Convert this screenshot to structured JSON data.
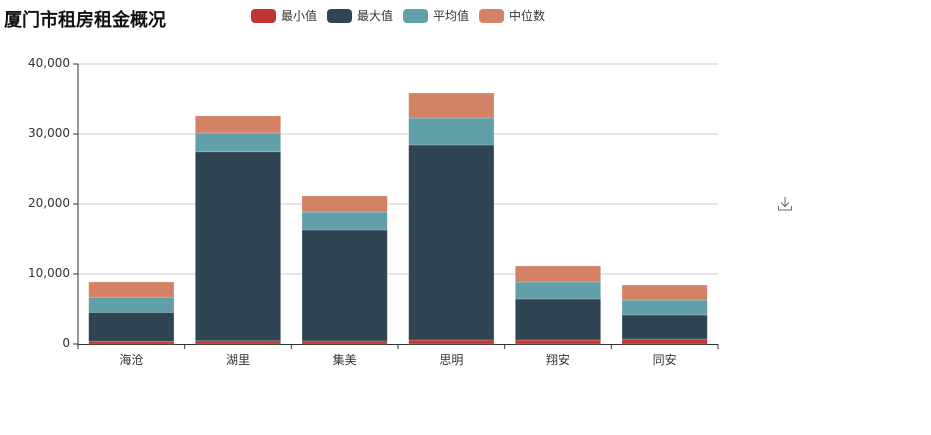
{
  "title": "厦门市租房租金概况",
  "legend": [
    {
      "label": "最小值",
      "color": "#c23531"
    },
    {
      "label": "最大值",
      "color": "#2f4554"
    },
    {
      "label": "平均值",
      "color": "#61a0a8"
    },
    {
      "label": "中位数",
      "color": "#d48265"
    }
  ],
  "toolbox": {
    "download_icon": "download-icon"
  },
  "chart_data": {
    "type": "bar",
    "stacked": true,
    "title": "厦门市租房租金概况",
    "xlabel": "",
    "ylabel": "",
    "ylim": [
      0,
      40000
    ],
    "yticks": [
      "0",
      "10,000",
      "20,000",
      "30,000",
      "40,000"
    ],
    "grid": true,
    "legend_position": "top",
    "categories": [
      "海沧",
      "湖里",
      "集美",
      "思明",
      "翔安",
      "同安"
    ],
    "series": [
      {
        "name": "最小值",
        "color": "#c23531",
        "values": [
          400,
          450,
          430,
          570,
          570,
          710
        ]
      },
      {
        "name": "最大值",
        "color": "#2f4554",
        "values": [
          4100,
          27000,
          15860,
          27860,
          5860,
          3430
        ]
      },
      {
        "name": "平均值",
        "color": "#61a0a8",
        "values": [
          2200,
          2700,
          2570,
          3860,
          2430,
          2140
        ]
      },
      {
        "name": "中位数",
        "color": "#d48265",
        "values": [
          2160,
          2430,
          2290,
          3570,
          2290,
          2140
        ]
      }
    ]
  }
}
